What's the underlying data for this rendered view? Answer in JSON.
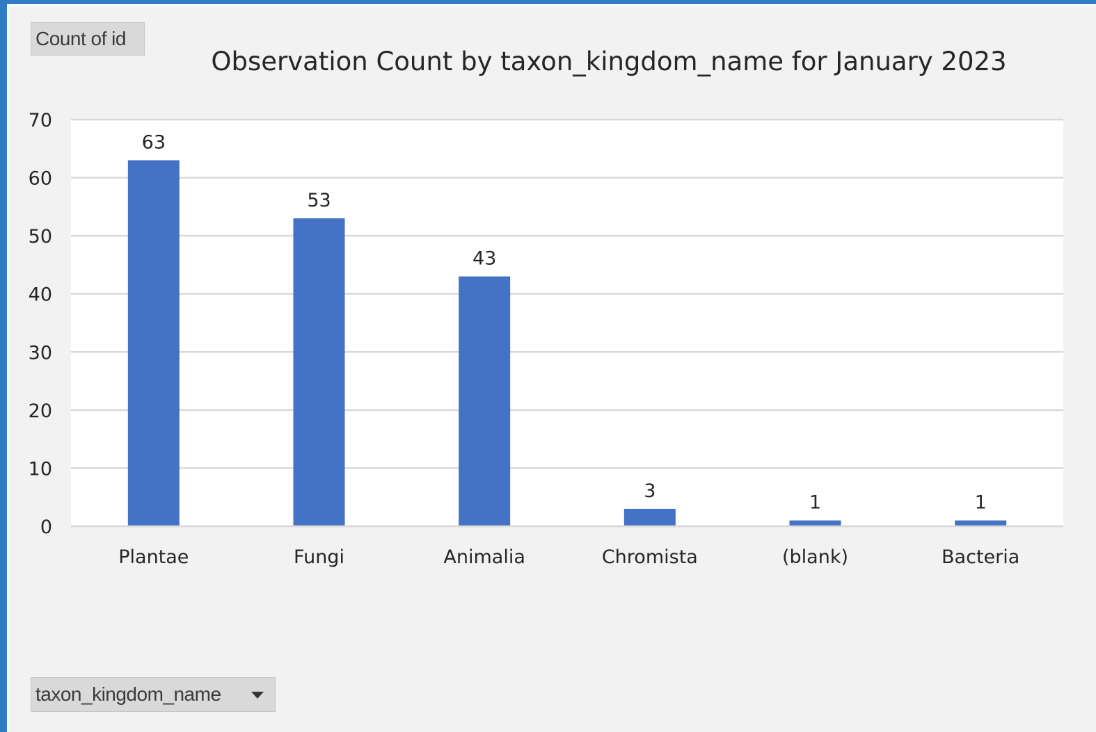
{
  "pivot_buttons": {
    "value_field": "Count of id",
    "axis_field": "taxon_kingdom_name"
  },
  "colors": {
    "bar": "#4472c4",
    "frame": "#2e7cc4",
    "gridline": "#d9d9d9",
    "plot_background": "#ffffff",
    "chart_background": "#f2f2f2"
  },
  "icons": {
    "axis_field_dropdown": "triangle-down-icon"
  },
  "chart_data": {
    "type": "bar",
    "title": "Observation Count by taxon_kingdom_name for January 2023",
    "xlabel": "",
    "ylabel": "",
    "categories": [
      "Plantae",
      "Fungi",
      "Animalia",
      "Chromista",
      "(blank)",
      "Bacteria"
    ],
    "values": [
      63,
      53,
      43,
      3,
      1,
      1
    ],
    "data_labels": [
      "63",
      "53",
      "43",
      "3",
      "1",
      "1"
    ],
    "ylim": [
      0,
      70
    ],
    "yticks": [
      0,
      10,
      20,
      30,
      40,
      50,
      60,
      70
    ],
    "grid": true,
    "legend": "none"
  }
}
